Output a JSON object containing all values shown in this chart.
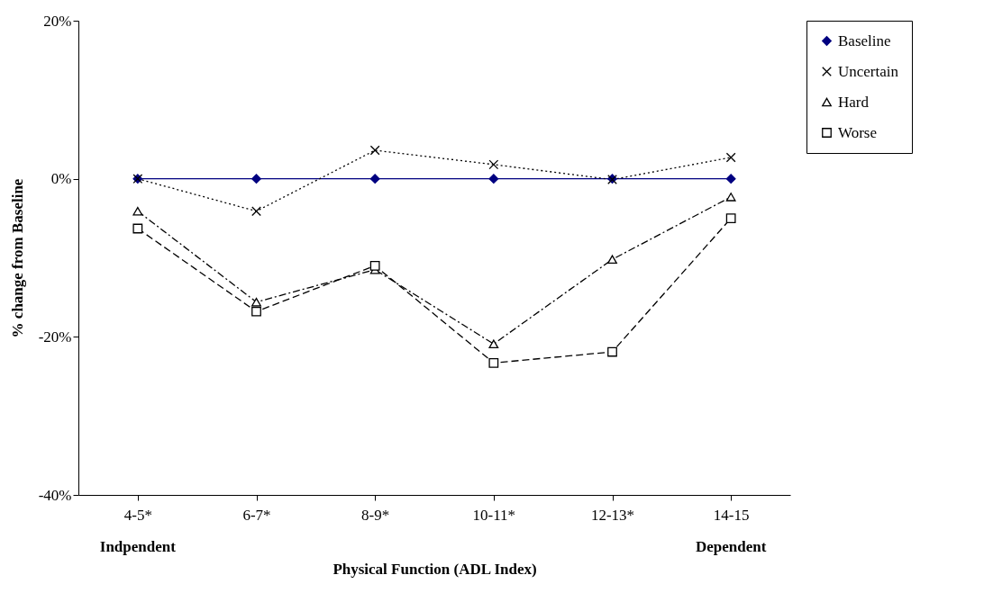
{
  "chart_data": {
    "type": "line",
    "xlabel": "Physical Function (ADL Index)",
    "ylabel": "% change from Baseline",
    "categories": [
      "4-5*",
      "6-7*",
      "8-9*",
      "10-11*",
      "12-13*",
      "14-15"
    ],
    "ylim": [
      -40,
      20
    ],
    "yticks": [
      {
        "value": -40,
        "label": "-40%"
      },
      {
        "value": -20,
        "label": "-20%"
      },
      {
        "value": 0,
        "label": "0%"
      },
      {
        "value": 20,
        "label": "20%"
      }
    ],
    "grid": false,
    "legend": "right",
    "annotations": [
      "Indpendent",
      "Dependent"
    ],
    "series": [
      {
        "name": "Baseline",
        "color": "#000080",
        "marker": "diamond",
        "line_style": "solid",
        "values": [
          0,
          0,
          0,
          0,
          0,
          0
        ]
      },
      {
        "name": "Uncertain",
        "color": "#000000",
        "marker": "cross",
        "line_style": "dotted",
        "values": [
          0,
          -4.1,
          3.6,
          1.8,
          -0.1,
          2.7
        ]
      },
      {
        "name": "Hard",
        "color": "#000000",
        "marker": "triangle",
        "line_style": "dashdot",
        "values": [
          -4.1,
          -15.6,
          -11.5,
          -20.9,
          -10.2,
          -2.3
        ]
      },
      {
        "name": "Worse",
        "color": "#000000",
        "marker": "square",
        "line_style": "dashed",
        "values": [
          -6.3,
          -16.8,
          -11.0,
          -23.3,
          -21.9,
          -5.0
        ]
      }
    ]
  }
}
